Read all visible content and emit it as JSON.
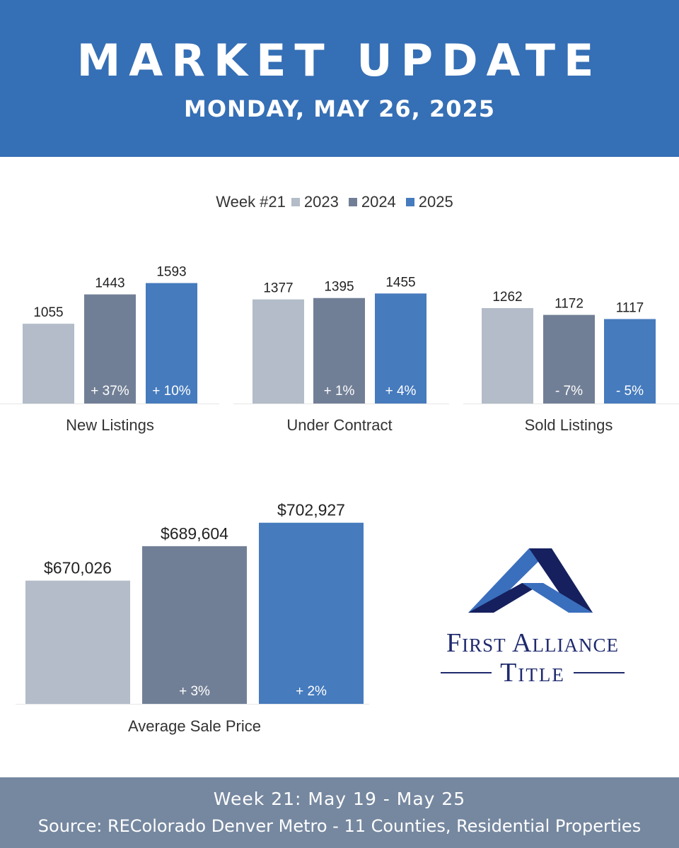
{
  "header": {
    "title": "MARKET UPDATE",
    "date": "MONDAY, MAY 26, 2025",
    "background": "#356fb5"
  },
  "legend": {
    "title": "Week #21",
    "items": [
      {
        "label": "2023",
        "color": "#b3bcc8"
      },
      {
        "label": "2024",
        "color": "#717f96"
      },
      {
        "label": "2025",
        "color": "#467bbd"
      }
    ]
  },
  "chart_data": [
    {
      "type": "bar",
      "category": "New Listings",
      "series_names": [
        "2023",
        "2024",
        "2025"
      ],
      "values": [
        1055,
        1443,
        1593
      ],
      "value_labels": [
        "1055",
        "1443",
        "1593"
      ],
      "change_labels": [
        "",
        "+ 37%",
        "+ 10%"
      ]
    },
    {
      "type": "bar",
      "category": "Under Contract",
      "series_names": [
        "2023",
        "2024",
        "2025"
      ],
      "values": [
        1377,
        1395,
        1455
      ],
      "value_labels": [
        "1377",
        "1395",
        "1455"
      ],
      "change_labels": [
        "",
        "+ 1%",
        "+ 4%"
      ]
    },
    {
      "type": "bar",
      "category": "Sold Listings",
      "series_names": [
        "2023",
        "2024",
        "2025"
      ],
      "values": [
        1262,
        1172,
        1117
      ],
      "value_labels": [
        "1262",
        "1172",
        "1117"
      ],
      "change_labels": [
        "",
        "- 7%",
        "- 5%"
      ]
    },
    {
      "type": "bar",
      "category": "Average Sale Price",
      "series_names": [
        "2023",
        "2024",
        "2025"
      ],
      "values": [
        670026,
        689604,
        702927
      ],
      "value_labels": [
        "$670,026",
        "$689,604",
        "$702,927"
      ],
      "change_labels": [
        "",
        "+ 3%",
        "+ 2%"
      ]
    }
  ],
  "logo": {
    "line1": "First Alliance",
    "line2": "Title"
  },
  "footer": {
    "week": "Week 21: May 19 - May 25",
    "source": "Source: REColorado Denver Metro - 11 Counties, Residential Properties",
    "background": "#7688a0"
  }
}
